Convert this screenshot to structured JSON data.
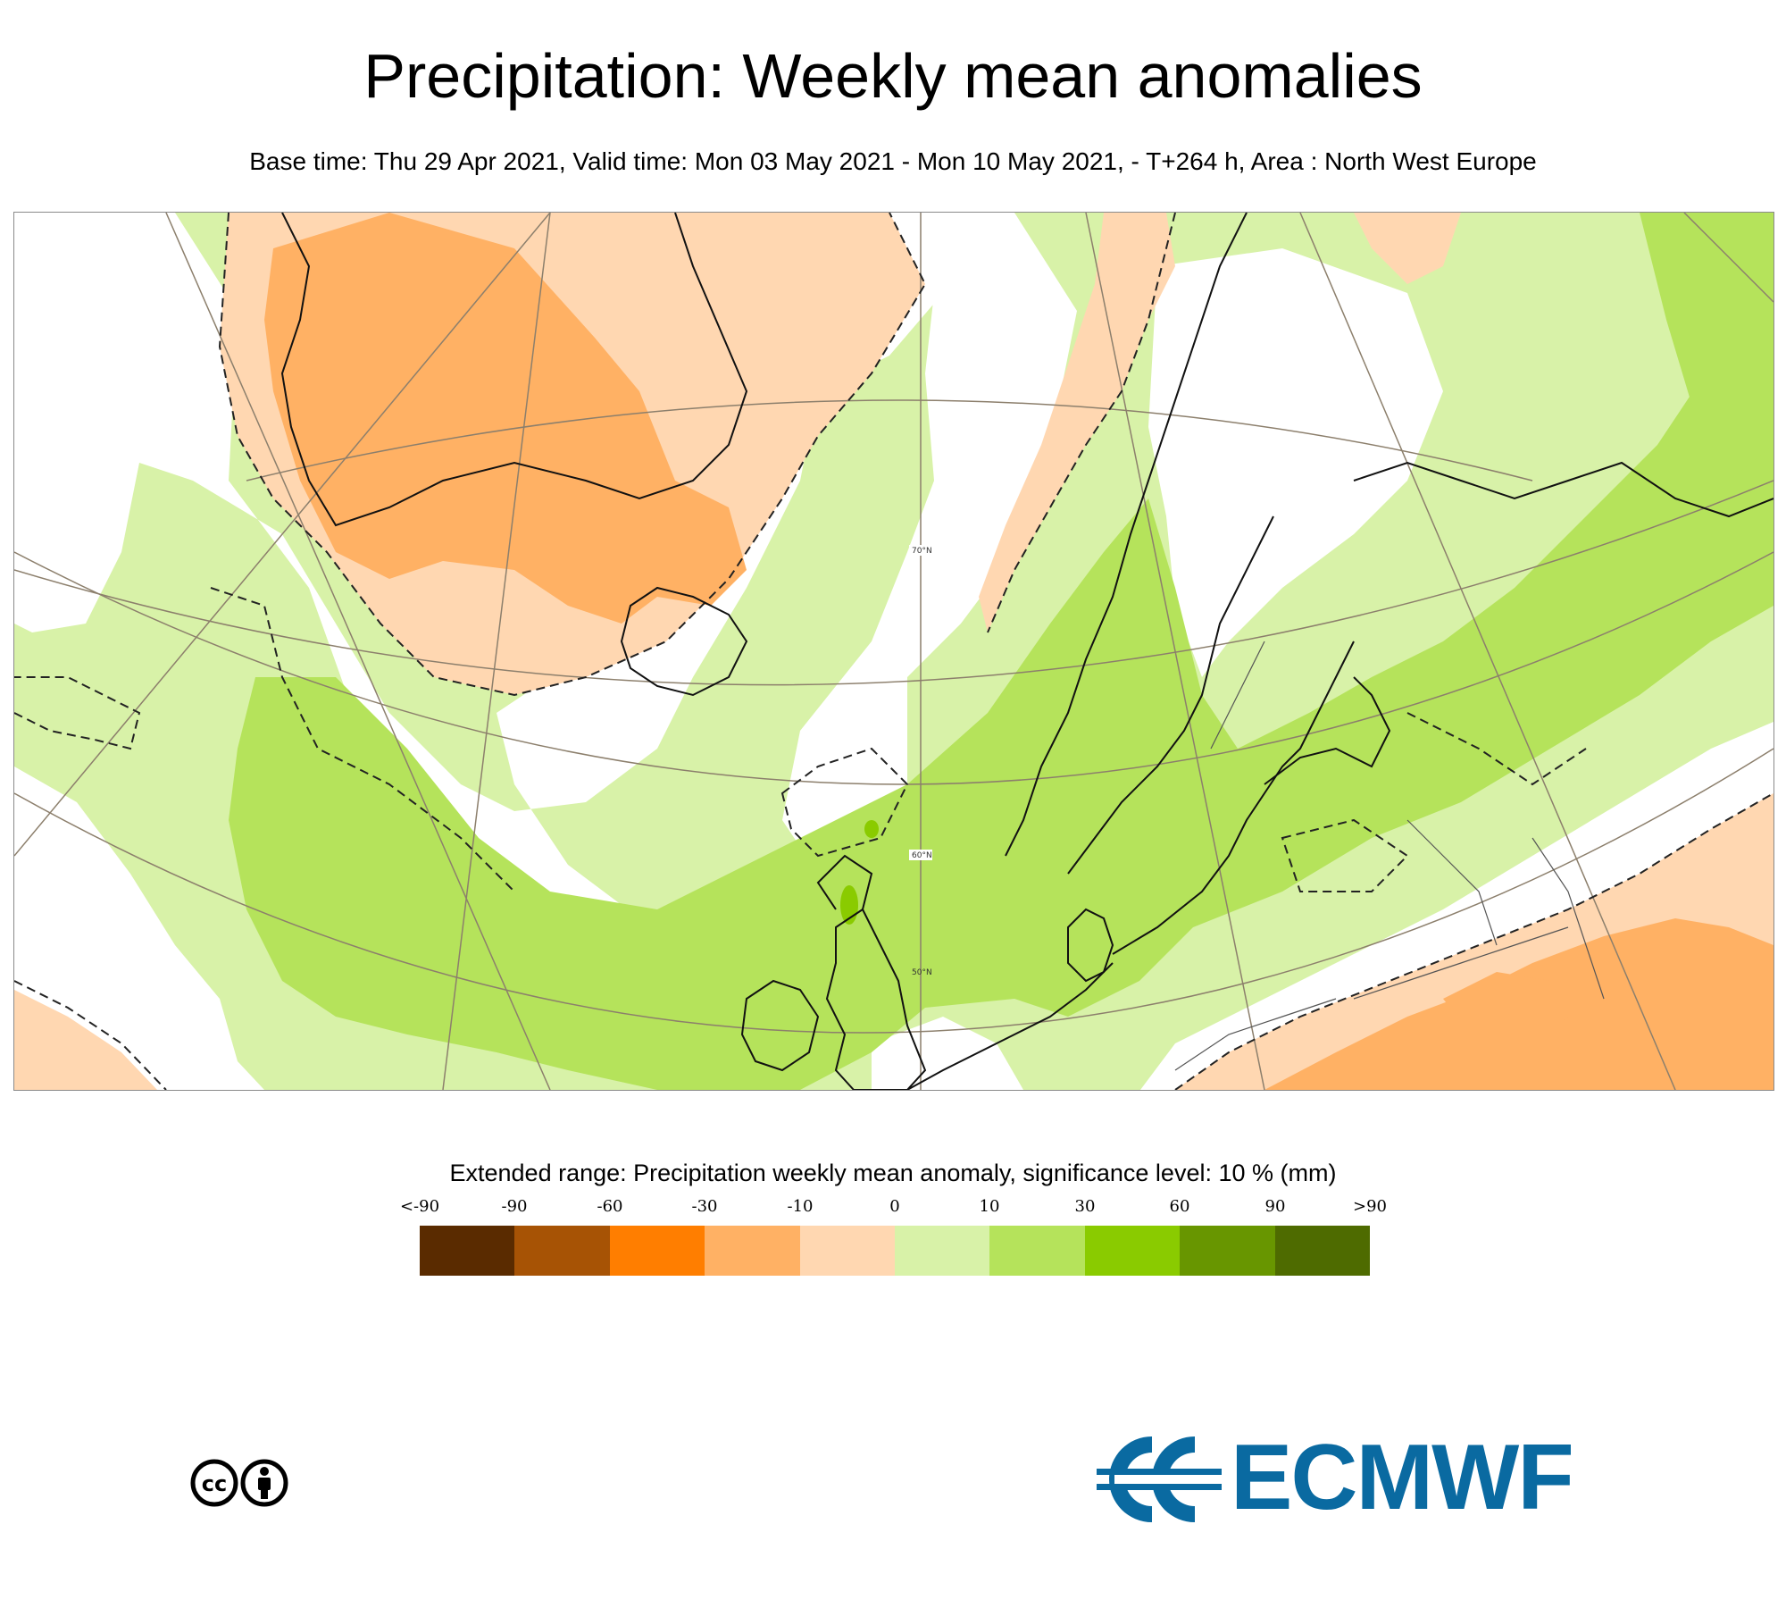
{
  "title": "Precipitation: Weekly mean anomalies",
  "subtitle": "Base time: Thu 29 Apr 2021, Valid time: Mon 03 May 2021 - Mon 10 May 2021, - T+264 h, Area : North West Europe",
  "map": {
    "latitude_labels": [
      "70°N",
      "60°N",
      "50°N"
    ]
  },
  "legend": {
    "title": "Extended range: Precipitation weekly mean anomaly, significance level: 10 % (mm)",
    "ticks": [
      "<-90",
      "-90",
      "-60",
      "-30",
      "-10",
      "0",
      "10",
      "30",
      "60",
      "90",
      ">90"
    ],
    "colors": [
      "#5a2b00",
      "#a75305",
      "#ff7e00",
      "#ffb164",
      "#ffd7b1",
      "#d8f2a8",
      "#b5e35b",
      "#8acb00",
      "#689600",
      "#4e6b00"
    ]
  },
  "brand": {
    "name": "ECMWF",
    "color": "#0a6aa1",
    "license_icon": "cc-by-icon"
  },
  "colors": {
    "orange_dark": "#ffb164",
    "orange_light": "#ffd7b1",
    "green_light": "#d8f2a8",
    "green_mid": "#b5e35b",
    "green_strong": "#8acb00"
  }
}
